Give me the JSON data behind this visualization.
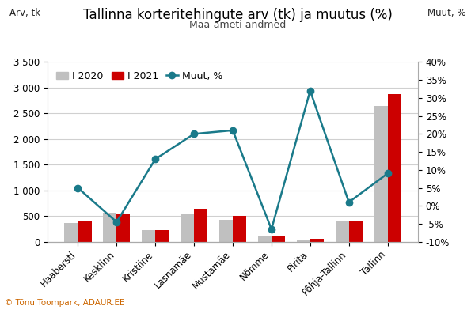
{
  "title": "Tallinna korteritehingute arv (tk) ja muutus (%)",
  "subtitle": "Maa-ameti andmed",
  "ylabel_left": "Arv, tk",
  "ylabel_right": "Muut, %",
  "categories": [
    "Haabersti",
    "Kesklinn",
    "Kristiine",
    "Lasnamäe",
    "Mustamäe",
    "Nõmme",
    "Pirita",
    "Põhja-Tallinn",
    "Tallinn"
  ],
  "values_2020": [
    360,
    560,
    220,
    540,
    420,
    100,
    45,
    390,
    2650
  ],
  "values_2021": [
    390,
    540,
    230,
    640,
    500,
    100,
    55,
    395,
    2880
  ],
  "muut_pct": [
    5.0,
    -4.5,
    13.0,
    20.0,
    21.0,
    -6.5,
    32.0,
    1.0,
    9.0
  ],
  "color_2020": "#c0c0c0",
  "color_2021": "#cc0000",
  "color_line": "#1a7a8a",
  "ylim_left": [
    0,
    3500
  ],
  "ylim_right": [
    -10,
    40
  ],
  "yticks_left": [
    0,
    500,
    1000,
    1500,
    2000,
    2500,
    3000,
    3500
  ],
  "yticks_right": [
    -10,
    -5,
    0,
    5,
    10,
    15,
    20,
    25,
    30,
    35,
    40
  ],
  "background_color": "#ffffff",
  "grid_color": "#d0d0d0",
  "title_fontsize": 12,
  "subtitle_fontsize": 9,
  "tick_fontsize": 8.5,
  "legend_fontsize": 9,
  "watermark_color": "#cc6600"
}
